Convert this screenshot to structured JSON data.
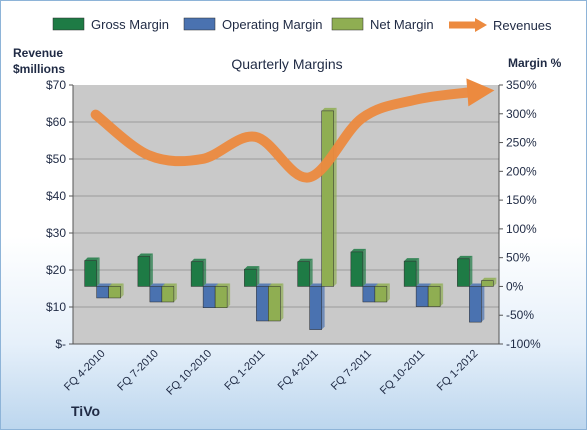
{
  "company": "TiVo",
  "chart_data": {
    "type": "bar",
    "title": "Quarterly Margins",
    "ylabel_left": "Revenue\n$millions",
    "ylabel_right": "Margin %",
    "categories": [
      "FQ 4-2010",
      "FQ 7-2010",
      "FQ 10-2010",
      "FQ 1-2011",
      "FQ 4-2011",
      "FQ 7-2011",
      "FQ 10-2011",
      "FQ 1-2012"
    ],
    "left_axis": {
      "range": [
        0,
        70
      ],
      "ticks": [
        0,
        10,
        20,
        30,
        40,
        50,
        60,
        70
      ],
      "tick_labels": [
        "$-",
        "$10",
        "$20",
        "$30",
        "$40",
        "$50",
        "$60",
        "$70"
      ]
    },
    "right_axis": {
      "range": [
        -100,
        350
      ],
      "ticks": [
        -100,
        -50,
        0,
        50,
        100,
        150,
        200,
        250,
        300,
        350
      ],
      "tick_labels": [
        "-100%",
        "-50%",
        "0%",
        "50%",
        "100%",
        "150%",
        "200%",
        "250%",
        "300%",
        "350%"
      ]
    },
    "series": [
      {
        "name": "Gross Margin",
        "axis": "right",
        "color": "#1e7b45",
        "values": [
          45,
          52,
          43,
          30,
          43,
          60,
          44,
          48
        ]
      },
      {
        "name": "Operating Margin",
        "axis": "right",
        "color": "#4a72b0",
        "values": [
          -20,
          -27,
          -37,
          -60,
          -75,
          -27,
          -35,
          -62
        ]
      },
      {
        "name": "Net Margin",
        "axis": "right",
        "color": "#8fae52",
        "values": [
          -20,
          -27,
          -37,
          -60,
          305,
          -27,
          -35,
          10
        ]
      },
      {
        "name": "Revenues",
        "axis": "left",
        "type": "line",
        "color": "#ec8a3f",
        "values": [
          62,
          51,
          50,
          56,
          45,
          61,
          66,
          68
        ]
      }
    ],
    "legend_position": "top",
    "grid": true
  }
}
